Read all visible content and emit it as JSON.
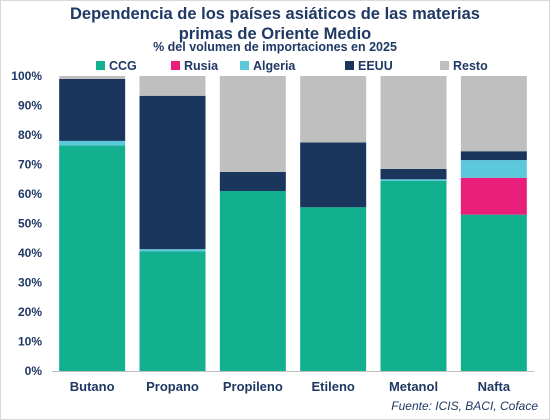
{
  "chart_data": {
    "type": "bar",
    "stacked": true,
    "title_line1": "Dependencia de los países asiáticos de las materias",
    "title_line2": "primas de Oriente Medio",
    "subtitle": "% del volumen de importaciones en 2025",
    "source": "Fuente: ICIS, BACI, Coface",
    "categories": [
      "Butano",
      "Propano",
      "Propileno",
      "Etileno",
      "Metanol",
      "Nafta"
    ],
    "series": [
      {
        "name": "CCG",
        "color": "#12b08f",
        "values": [
          76.5,
          40.5,
          61.0,
          55.5,
          64.5,
          53.0
        ]
      },
      {
        "name": "Rusia",
        "color": "#e91e7a",
        "values": [
          0.0,
          0.0,
          0.0,
          0.0,
          0.0,
          12.5
        ]
      },
      {
        "name": "Algeria",
        "color": "#5bc8dc",
        "values": [
          1.5,
          0.8,
          0.0,
          0.0,
          0.5,
          6.0
        ]
      },
      {
        "name": "EEUU",
        "color": "#1b365d",
        "values": [
          21.0,
          52.0,
          6.5,
          22.0,
          3.5,
          3.0
        ]
      },
      {
        "name": "Resto",
        "color": "#bfbfbf",
        "values": [
          1.0,
          6.7,
          32.5,
          22.5,
          31.5,
          25.5
        ]
      }
    ],
    "yticks": [
      "0%",
      "10%",
      "20%",
      "30%",
      "40%",
      "50%",
      "60%",
      "70%",
      "80%",
      "90%",
      "100%"
    ],
    "ylim": [
      0,
      100
    ],
    "grid": false,
    "legend_position": "top"
  }
}
